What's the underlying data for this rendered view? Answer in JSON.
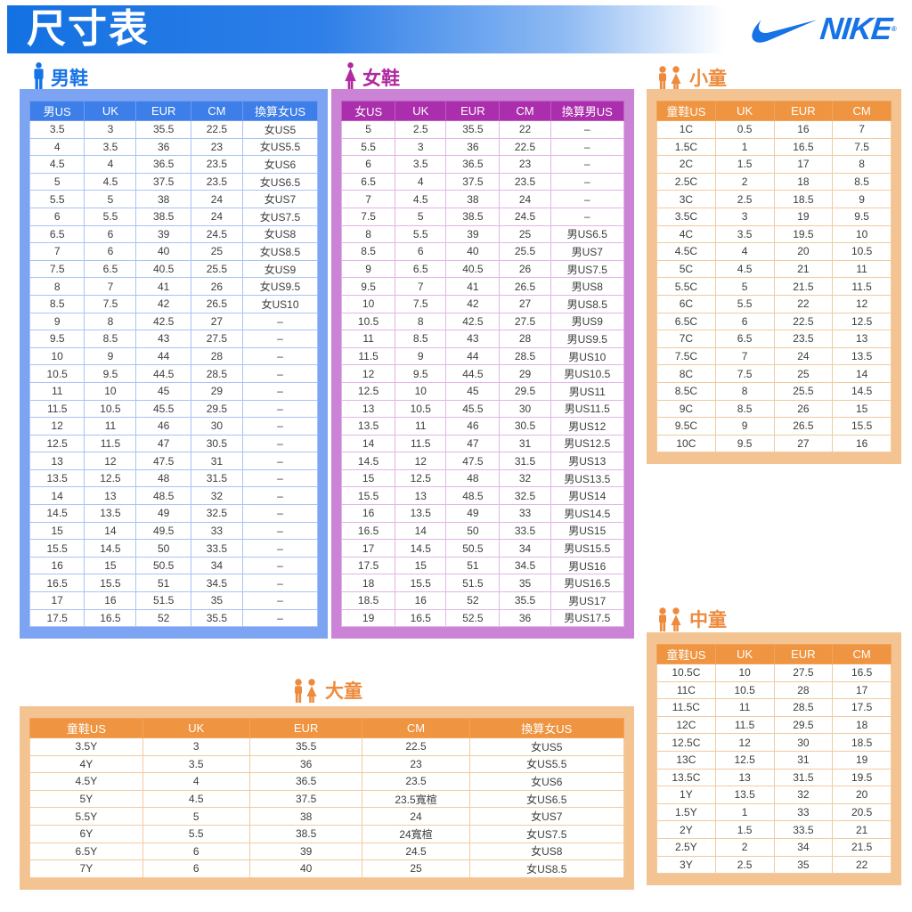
{
  "page": {
    "title": "尺寸表"
  },
  "brand": {
    "name": "NIKE",
    "registered_mark": "®",
    "swoosh_icon": "nike-swoosh-icon"
  },
  "colors": {
    "brand_blue": "#1673e6",
    "men_panel": "#7da3f3",
    "men_header": "#3d7ee9",
    "women_panel": "#cb84d5",
    "women_header": "#ab2fad",
    "women_label": "#b0299f",
    "kids_panel": "#f3c492",
    "kids_header": "#ef9440",
    "kids_label": "#ee8a3c"
  },
  "icons": {
    "men": "man-icon",
    "women": "woman-icon",
    "kids": "children-icon"
  },
  "sections": {
    "men": {
      "label": "男鞋",
      "columns": [
        "男US",
        "UK",
        "EUR",
        "CM",
        "換算女US"
      ],
      "rows": [
        [
          "3.5",
          "3",
          "35.5",
          "22.5",
          "女US5"
        ],
        [
          "4",
          "3.5",
          "36",
          "23",
          "女US5.5"
        ],
        [
          "4.5",
          "4",
          "36.5",
          "23.5",
          "女US6"
        ],
        [
          "5",
          "4.5",
          "37.5",
          "23.5",
          "女US6.5"
        ],
        [
          "5.5",
          "5",
          "38",
          "24",
          "女US7"
        ],
        [
          "6",
          "5.5",
          "38.5",
          "24",
          "女US7.5"
        ],
        [
          "6.5",
          "6",
          "39",
          "24.5",
          "女US8"
        ],
        [
          "7",
          "6",
          "40",
          "25",
          "女US8.5"
        ],
        [
          "7.5",
          "6.5",
          "40.5",
          "25.5",
          "女US9"
        ],
        [
          "8",
          "7",
          "41",
          "26",
          "女US9.5"
        ],
        [
          "8.5",
          "7.5",
          "42",
          "26.5",
          "女US10"
        ],
        [
          "9",
          "8",
          "42.5",
          "27",
          "–"
        ],
        [
          "9.5",
          "8.5",
          "43",
          "27.5",
          "–"
        ],
        [
          "10",
          "9",
          "44",
          "28",
          "–"
        ],
        [
          "10.5",
          "9.5",
          "44.5",
          "28.5",
          "–"
        ],
        [
          "11",
          "10",
          "45",
          "29",
          "–"
        ],
        [
          "11.5",
          "10.5",
          "45.5",
          "29.5",
          "–"
        ],
        [
          "12",
          "11",
          "46",
          "30",
          "–"
        ],
        [
          "12.5",
          "11.5",
          "47",
          "30.5",
          "–"
        ],
        [
          "13",
          "12",
          "47.5",
          "31",
          "–"
        ],
        [
          "13.5",
          "12.5",
          "48",
          "31.5",
          "–"
        ],
        [
          "14",
          "13",
          "48.5",
          "32",
          "–"
        ],
        [
          "14.5",
          "13.5",
          "49",
          "32.5",
          "–"
        ],
        [
          "15",
          "14",
          "49.5",
          "33",
          "–"
        ],
        [
          "15.5",
          "14.5",
          "50",
          "33.5",
          "–"
        ],
        [
          "16",
          "15",
          "50.5",
          "34",
          "–"
        ],
        [
          "16.5",
          "15.5",
          "51",
          "34.5",
          "–"
        ],
        [
          "17",
          "16",
          "51.5",
          "35",
          "–"
        ],
        [
          "17.5",
          "16.5",
          "52",
          "35.5",
          "–"
        ]
      ]
    },
    "women": {
      "label": "女鞋",
      "columns": [
        "女US",
        "UK",
        "EUR",
        "CM",
        "換算男US"
      ],
      "rows": [
        [
          "5",
          "2.5",
          "35.5",
          "22",
          "–"
        ],
        [
          "5.5",
          "3",
          "36",
          "22.5",
          "–"
        ],
        [
          "6",
          "3.5",
          "36.5",
          "23",
          "–"
        ],
        [
          "6.5",
          "4",
          "37.5",
          "23.5",
          "–"
        ],
        [
          "7",
          "4.5",
          "38",
          "24",
          "–"
        ],
        [
          "7.5",
          "5",
          "38.5",
          "24.5",
          "–"
        ],
        [
          "8",
          "5.5",
          "39",
          "25",
          "男US6.5"
        ],
        [
          "8.5",
          "6",
          "40",
          "25.5",
          "男US7"
        ],
        [
          "9",
          "6.5",
          "40.5",
          "26",
          "男US7.5"
        ],
        [
          "9.5",
          "7",
          "41",
          "26.5",
          "男US8"
        ],
        [
          "10",
          "7.5",
          "42",
          "27",
          "男US8.5"
        ],
        [
          "10.5",
          "8",
          "42.5",
          "27.5",
          "男US9"
        ],
        [
          "11",
          "8.5",
          "43",
          "28",
          "男US9.5"
        ],
        [
          "11.5",
          "9",
          "44",
          "28.5",
          "男US10"
        ],
        [
          "12",
          "9.5",
          "44.5",
          "29",
          "男US10.5"
        ],
        [
          "12.5",
          "10",
          "45",
          "29.5",
          "男US11"
        ],
        [
          "13",
          "10.5",
          "45.5",
          "30",
          "男US11.5"
        ],
        [
          "13.5",
          "11",
          "46",
          "30.5",
          "男US12"
        ],
        [
          "14",
          "11.5",
          "47",
          "31",
          "男US12.5"
        ],
        [
          "14.5",
          "12",
          "47.5",
          "31.5",
          "男US13"
        ],
        [
          "15",
          "12.5",
          "48",
          "32",
          "男US13.5"
        ],
        [
          "15.5",
          "13",
          "48.5",
          "32.5",
          "男US14"
        ],
        [
          "16",
          "13.5",
          "49",
          "33",
          "男US14.5"
        ],
        [
          "16.5",
          "14",
          "50",
          "33.5",
          "男US15"
        ],
        [
          "17",
          "14.5",
          "50.5",
          "34",
          "男US15.5"
        ],
        [
          "17.5",
          "15",
          "51",
          "34.5",
          "男US16"
        ],
        [
          "18",
          "15.5",
          "51.5",
          "35",
          "男US16.5"
        ],
        [
          "18.5",
          "16",
          "52",
          "35.5",
          "男US17"
        ],
        [
          "19",
          "16.5",
          "52.5",
          "36",
          "男US17.5"
        ]
      ]
    },
    "little_kids": {
      "label": "小童",
      "columns": [
        "童鞋US",
        "UK",
        "EUR",
        "CM"
      ],
      "rows": [
        [
          "1C",
          "0.5",
          "16",
          "7"
        ],
        [
          "1.5C",
          "1",
          "16.5",
          "7.5"
        ],
        [
          "2C",
          "1.5",
          "17",
          "8"
        ],
        [
          "2.5C",
          "2",
          "18",
          "8.5"
        ],
        [
          "3C",
          "2.5",
          "18.5",
          "9"
        ],
        [
          "3.5C",
          "3",
          "19",
          "9.5"
        ],
        [
          "4C",
          "3.5",
          "19.5",
          "10"
        ],
        [
          "4.5C",
          "4",
          "20",
          "10.5"
        ],
        [
          "5C",
          "4.5",
          "21",
          "11"
        ],
        [
          "5.5C",
          "5",
          "21.5",
          "11.5"
        ],
        [
          "6C",
          "5.5",
          "22",
          "12"
        ],
        [
          "6.5C",
          "6",
          "22.5",
          "12.5"
        ],
        [
          "7C",
          "6.5",
          "23.5",
          "13"
        ],
        [
          "7.5C",
          "7",
          "24",
          "13.5"
        ],
        [
          "8C",
          "7.5",
          "25",
          "14"
        ],
        [
          "8.5C",
          "8",
          "25.5",
          "14.5"
        ],
        [
          "9C",
          "8.5",
          "26",
          "15"
        ],
        [
          "9.5C",
          "9",
          "26.5",
          "15.5"
        ],
        [
          "10C",
          "9.5",
          "27",
          "16"
        ]
      ]
    },
    "middle_kids": {
      "label": "中童",
      "columns": [
        "童鞋US",
        "UK",
        "EUR",
        "CM"
      ],
      "rows": [
        [
          "10.5C",
          "10",
          "27.5",
          "16.5"
        ],
        [
          "11C",
          "10.5",
          "28",
          "17"
        ],
        [
          "11.5C",
          "11",
          "28.5",
          "17.5"
        ],
        [
          "12C",
          "11.5",
          "29.5",
          "18"
        ],
        [
          "12.5C",
          "12",
          "30",
          "18.5"
        ],
        [
          "13C",
          "12.5",
          "31",
          "19"
        ],
        [
          "13.5C",
          "13",
          "31.5",
          "19.5"
        ],
        [
          "1Y",
          "13.5",
          "32",
          "20"
        ],
        [
          "1.5Y",
          "1",
          "33",
          "20.5"
        ],
        [
          "2Y",
          "1.5",
          "33.5",
          "21"
        ],
        [
          "2.5Y",
          "2",
          "34",
          "21.5"
        ],
        [
          "3Y",
          "2.5",
          "35",
          "22"
        ]
      ]
    },
    "big_kids": {
      "label": "大童",
      "columns": [
        "童鞋US",
        "UK",
        "EUR",
        "CM",
        "換算女US"
      ],
      "rows": [
        [
          "3.5Y",
          "3",
          "35.5",
          "22.5",
          "女US5"
        ],
        [
          "4Y",
          "3.5",
          "36",
          "23",
          "女US5.5"
        ],
        [
          "4.5Y",
          "4",
          "36.5",
          "23.5",
          "女US6"
        ],
        [
          "5Y",
          "4.5",
          "37.5",
          "23.5寬楦",
          "女US6.5"
        ],
        [
          "5.5Y",
          "5",
          "38",
          "24",
          "女US7"
        ],
        [
          "6Y",
          "5.5",
          "38.5",
          "24寬楦",
          "女US7.5"
        ],
        [
          "6.5Y",
          "6",
          "39",
          "24.5",
          "女US8"
        ],
        [
          "7Y",
          "6",
          "40",
          "25",
          "女US8.5"
        ]
      ]
    }
  }
}
